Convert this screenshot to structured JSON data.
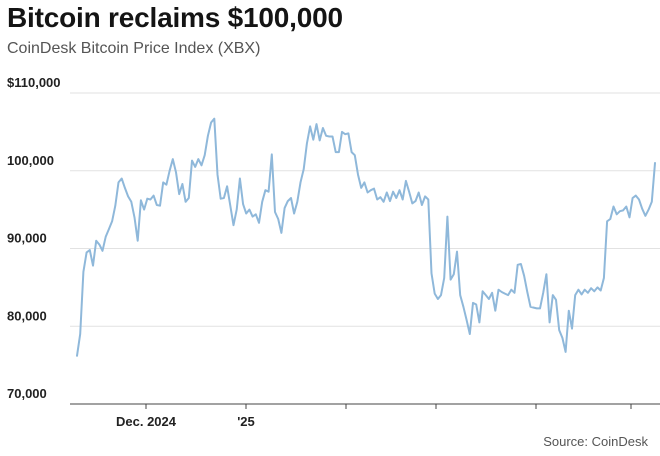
{
  "title": "Bitcoin reclaims $100,000",
  "subtitle": "CoinDesk Bitcoin Price Index (XBX)",
  "source": "Source: CoinDesk",
  "colors": {
    "line": "#8fb8da",
    "grid": "#e2e2e2",
    "axis": "#444444"
  },
  "chart_data": {
    "type": "line",
    "title": "Bitcoin reclaims $100,000",
    "subtitle": "CoinDesk Bitcoin Price Index (XBX)",
    "xlabel": "",
    "ylabel": "",
    "ylim": [
      70000,
      110000
    ],
    "y_ticks": [
      {
        "value": 110000,
        "label": "$110,000"
      },
      {
        "value": 100000,
        "label": "100,000"
      },
      {
        "value": 90000,
        "label": "90,000"
      },
      {
        "value": 80000,
        "label": "80,000"
      },
      {
        "value": 70000,
        "label": "70,000"
      }
    ],
    "x_ticks": [
      "Dec. 2024",
      "'25",
      "",
      "",
      "",
      ""
    ],
    "grid": true,
    "legend": "none",
    "series": [
      {
        "values": [
          76200,
          79000,
          87000,
          89500,
          89800,
          87800,
          91000,
          90500,
          89700,
          91500,
          92500,
          93500,
          95500,
          98500,
          99000,
          97800,
          96700,
          96000,
          94000,
          91000,
          96200,
          95000,
          96400,
          96300,
          96800,
          95600,
          95500,
          98500,
          98200,
          100000,
          101500,
          99800,
          97000,
          98300,
          96000,
          96500,
          101300,
          100500,
          101500,
          100700,
          102000,
          104500,
          106200,
          106700,
          99500,
          96400,
          96500,
          98000,
          95500,
          93000,
          95000,
          99000,
          95700,
          94500,
          95000,
          94100,
          94400,
          93300,
          96000,
          97500,
          97300,
          102100,
          94700,
          93800,
          92000,
          95200,
          96100,
          96500,
          94500,
          96000,
          98500,
          100200,
          103500,
          105700,
          104000,
          106000,
          103900,
          105500,
          104500,
          104400,
          104400,
          102400,
          102400,
          105000,
          104700,
          104800,
          102400,
          102000,
          99500,
          97800,
          98500,
          97200,
          97500,
          97700,
          96300,
          96600,
          96000,
          97200,
          96100,
          97300,
          96500,
          97500,
          96300,
          98700,
          97300,
          95800,
          96100,
          97200,
          95600,
          96700,
          96300,
          86800,
          84200,
          83500,
          84000,
          86200,
          94100,
          86000,
          86700,
          89600,
          84000,
          82500,
          80800,
          79000,
          83000,
          82800,
          80500,
          84500,
          84000,
          83500,
          84300,
          82000,
          84700,
          84400,
          84200,
          84000,
          84700,
          84300,
          87900,
          88000,
          86500,
          84400,
          82500,
          82400,
          82300,
          82300,
          84300,
          86700,
          80500,
          84000,
          83400,
          79500,
          78500,
          76700,
          82000,
          79700,
          84000,
          84700,
          84100,
          84700,
          84300,
          84900,
          84500,
          85000,
          84600,
          86200,
          93500,
          93800,
          95400,
          94400,
          94800,
          94900,
          95400,
          94000,
          96500,
          96800,
          96300,
          95100,
          94200,
          95000,
          96000,
          101000
        ]
      }
    ]
  }
}
